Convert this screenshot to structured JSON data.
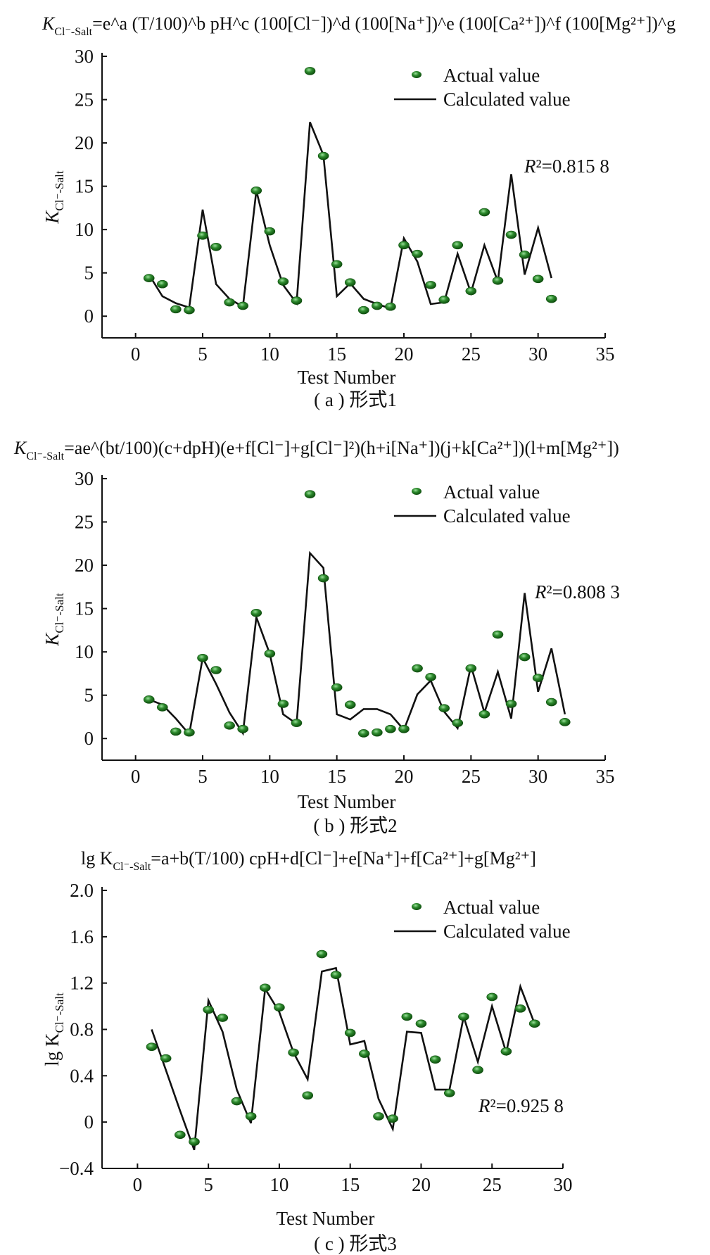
{
  "equations": {
    "a": {
      "lead": "K",
      "sub": "Cl⁻-Salt",
      "body": "=e^a (T/100)^b pH^c (100[Cl⁻])^d (100[Na⁺])^e (100[Ca²⁺])^f (100[Mg²⁺])^g"
    },
    "b": {
      "lead": "K",
      "sub": "Cl⁻-Salt",
      "body": "=ae^(bt/100)(c+dpH)(e+f[Cl⁻]+g[Cl⁻]²)(h+i[Na⁺])(j+k[Ca²⁺])(l+m[Mg²⁺])"
    },
    "c": {
      "lead": "lg K",
      "sub": "Cl⁻-Salt",
      "body": "=a+b(T/100) cpH+d[Cl⁻]+e[Na⁺]+f[Ca²⁺]+g[Mg²⁺]"
    }
  },
  "colors": {
    "actual_point": "#2e8b2e",
    "calculated_line": "#111111"
  },
  "chart_data": [
    {
      "id": "a",
      "type": "scatter+line",
      "caption": "( a ) 形式1",
      "xlabel": "Test Number",
      "ylabel": "K",
      "ylabel_sub": "Cl⁻-Salt",
      "xlim": [
        -2.5,
        35
      ],
      "ylim": [
        -2.5,
        30
      ],
      "xticks": [
        0,
        5,
        10,
        15,
        20,
        25,
        30,
        35
      ],
      "yticks": [
        0,
        5,
        10,
        15,
        20,
        25,
        30
      ],
      "legend": [
        "Actual value",
        "Calculated value"
      ],
      "legend_position": "top-right",
      "annotation": "R²=0.815 8",
      "series": [
        {
          "name": "Actual value",
          "kind": "scatter",
          "x": [
            1,
            2,
            3,
            4,
            5,
            6,
            7,
            8,
            9,
            10,
            11,
            12,
            13,
            14,
            15,
            16,
            17,
            18,
            19,
            20,
            21,
            22,
            23,
            24,
            25,
            26,
            27,
            28,
            29,
            30,
            31
          ],
          "y": [
            4.4,
            3.7,
            0.8,
            0.7,
            9.3,
            8.0,
            1.6,
            1.2,
            14.5,
            9.8,
            4.0,
            1.8,
            28.3,
            18.5,
            6.0,
            3.9,
            0.7,
            1.2,
            1.1,
            8.2,
            7.2,
            3.6,
            1.9,
            8.2,
            2.9,
            12.0,
            4.1,
            9.4,
            7.1,
            4.3,
            2.0
          ]
        },
        {
          "name": "Calculated value",
          "kind": "line",
          "x": [
            1,
            2,
            3,
            4,
            5,
            6,
            7,
            8,
            9,
            10,
            11,
            12,
            13,
            14,
            15,
            16,
            17,
            18,
            19,
            20,
            21,
            22,
            23,
            24,
            25,
            26,
            27,
            28,
            29,
            30,
            31
          ],
          "y": [
            4.8,
            2.3,
            1.5,
            1.0,
            12.3,
            3.7,
            2.0,
            1.1,
            14.5,
            8.2,
            3.6,
            1.5,
            22.4,
            18.6,
            2.3,
            3.8,
            2.0,
            1.4,
            0.9,
            9.0,
            6.3,
            1.4,
            1.6,
            7.2,
            2.7,
            8.2,
            4.0,
            16.4,
            4.8,
            10.2,
            4.4
          ]
        }
      ]
    },
    {
      "id": "b",
      "type": "scatter+line",
      "caption": "( b ) 形式2",
      "xlabel": "Test Number",
      "ylabel": "K",
      "ylabel_sub": "Cl⁻-Salt",
      "xlim": [
        -2.5,
        35
      ],
      "ylim": [
        -2.5,
        30
      ],
      "xticks": [
        0,
        5,
        10,
        15,
        20,
        25,
        30,
        35
      ],
      "yticks": [
        0,
        5,
        10,
        15,
        20,
        25,
        30
      ],
      "legend": [
        "Actual value",
        "Calculated value"
      ],
      "legend_position": "top-right",
      "annotation": "R²=0.808 3",
      "series": [
        {
          "name": "Actual value",
          "kind": "scatter",
          "x": [
            1,
            2,
            3,
            4,
            5,
            6,
            7,
            8,
            9,
            10,
            11,
            12,
            13,
            14,
            15,
            16,
            17,
            18,
            19,
            20,
            21,
            22,
            23,
            24,
            25,
            26,
            27,
            28,
            29,
            30,
            31,
            32
          ],
          "y": [
            4.5,
            3.6,
            0.8,
            0.7,
            9.3,
            7.9,
            1.5,
            1.1,
            14.5,
            9.8,
            4.0,
            1.8,
            28.2,
            18.5,
            5.9,
            3.9,
            0.6,
            0.7,
            1.1,
            1.1,
            8.1,
            7.1,
            3.5,
            1.8,
            8.1,
            2.8,
            12.0,
            4.0,
            9.4,
            7.0,
            4.2,
            1.9
          ]
        },
        {
          "name": "Calculated value",
          "kind": "line",
          "x": [
            1,
            2,
            3,
            4,
            5,
            6,
            7,
            8,
            9,
            10,
            11,
            12,
            13,
            14,
            15,
            16,
            17,
            18,
            19,
            20,
            21,
            22,
            23,
            24,
            25,
            26,
            27,
            28,
            29,
            30,
            31,
            32
          ],
          "y": [
            4.5,
            3.9,
            2.3,
            0.5,
            9.3,
            6.3,
            3.0,
            0.6,
            14.0,
            9.8,
            2.8,
            1.7,
            21.4,
            19.7,
            2.8,
            2.2,
            3.4,
            3.4,
            2.8,
            1.0,
            5.1,
            6.7,
            3.1,
            1.2,
            8.4,
            3.0,
            7.7,
            2.3,
            16.8,
            5.4,
            10.4,
            2.8
          ]
        }
      ]
    },
    {
      "id": "c",
      "type": "scatter+line",
      "caption": "( c ) 形式3",
      "xlabel": "Test Number",
      "ylabel": "lg K",
      "ylabel_sub": "Cl⁻-Salt",
      "xlim": [
        -2.5,
        30
      ],
      "ylim": [
        -0.4,
        2.0
      ],
      "xticks": [
        0,
        5,
        10,
        15,
        20,
        25,
        30
      ],
      "yticks": [
        -0.4,
        0,
        0.4,
        0.8,
        1.2,
        1.6,
        2.0
      ],
      "ytick_labels": [
        "−0.4",
        "0",
        "0.4",
        "0.8",
        "1.2",
        "1.6",
        "2.0"
      ],
      "legend": [
        "Actual value",
        "Calculated value"
      ],
      "legend_position": "top-right",
      "annotation": "R²=0.925 8",
      "series": [
        {
          "name": "Actual value",
          "kind": "scatter",
          "x": [
            1,
            2,
            3,
            4,
            5,
            6,
            7,
            8,
            9,
            10,
            11,
            12,
            13,
            14,
            15,
            16,
            17,
            18,
            19,
            20,
            21,
            22,
            23,
            24,
            25,
            26,
            27,
            28
          ],
          "y": [
            0.65,
            0.55,
            -0.11,
            -0.17,
            0.97,
            0.9,
            0.18,
            0.05,
            1.16,
            0.99,
            0.6,
            0.23,
            1.45,
            1.27,
            0.77,
            0.59,
            0.05,
            0.03,
            0.91,
            0.85,
            0.54,
            0.25,
            0.91,
            0.45,
            1.08,
            0.61,
            0.98,
            0.85
          ]
        },
        {
          "name": "Calculated value",
          "kind": "line",
          "x": [
            1,
            2,
            3,
            4,
            5,
            6,
            7,
            8,
            9,
            10,
            11,
            12,
            13,
            14,
            15,
            16,
            17,
            18,
            19,
            20,
            21,
            22,
            23,
            24,
            25,
            26,
            27,
            28
          ],
          "y": [
            0.8,
            0.45,
            0.1,
            -0.24,
            1.05,
            0.78,
            0.28,
            -0.01,
            1.15,
            0.95,
            0.6,
            0.37,
            1.3,
            1.33,
            0.67,
            0.7,
            0.2,
            -0.06,
            0.78,
            0.77,
            0.28,
            0.28,
            0.91,
            0.52,
            1.0,
            0.6,
            1.17,
            0.85
          ]
        }
      ]
    }
  ]
}
